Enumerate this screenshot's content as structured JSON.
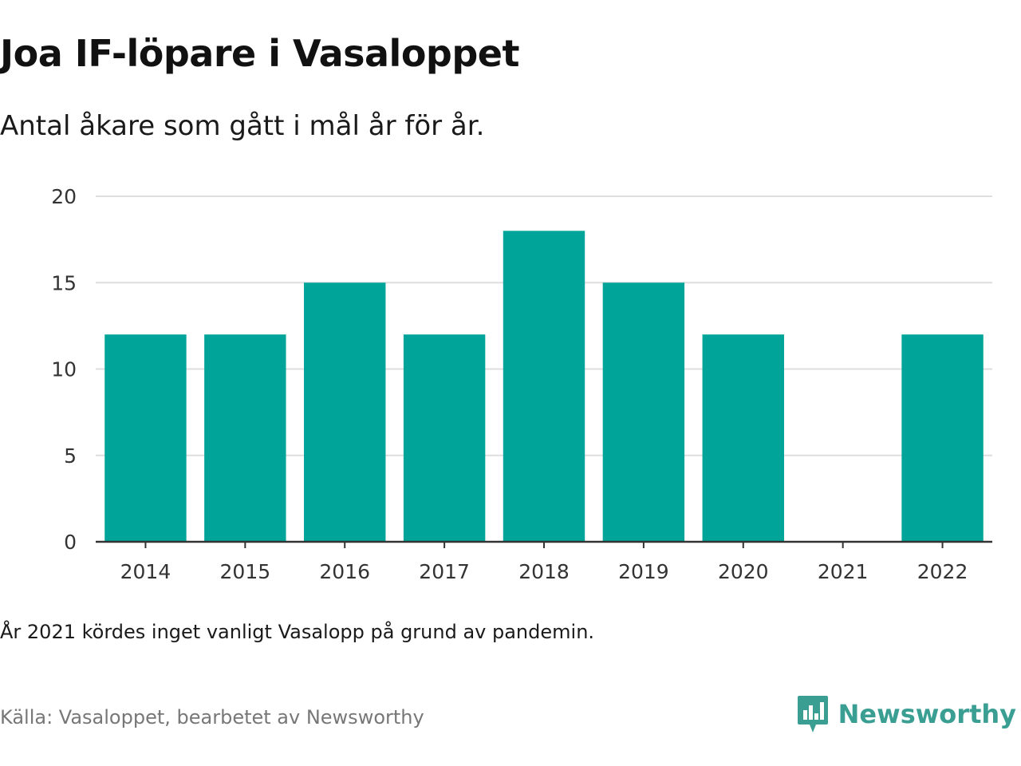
{
  "header": {
    "title": "Joa IF-löpare i Vasaloppet",
    "subtitle": "Antal åkare som gått i mål år för år."
  },
  "footer": {
    "note": "År 2021 kördes inget vanligt Vasalopp på grund av pandemin.",
    "source": "Källa: Vasaloppet, bearbetet av Newsworthy",
    "brand": "Newsworthy",
    "brand_icon": "newsworthy-logo-icon"
  },
  "colors": {
    "bar": "#00a499",
    "grid": "#dedede",
    "axis": "#333333",
    "brand": "#3a9e93"
  },
  "chart_data": {
    "type": "bar",
    "title": "Joa IF-löpare i Vasaloppet",
    "subtitle": "Antal åkare som gått i mål år för år.",
    "xlabel": "",
    "ylabel": "",
    "categories": [
      "2014",
      "2015",
      "2016",
      "2017",
      "2018",
      "2019",
      "2020",
      "2021",
      "2022"
    ],
    "values": [
      12,
      12,
      15,
      12,
      18,
      15,
      12,
      0,
      12
    ],
    "ylim": [
      0,
      20
    ],
    "yticks": [
      0,
      5,
      10,
      15,
      20
    ],
    "grid": true,
    "legend": "none"
  }
}
